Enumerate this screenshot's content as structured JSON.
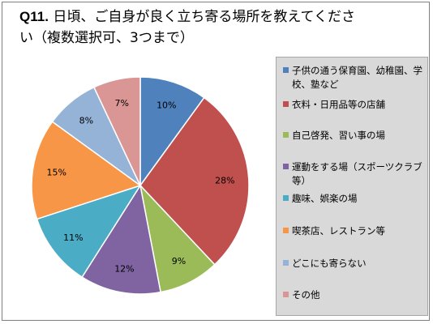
{
  "title": {
    "qnum": "Q11.",
    "text_line1": "日頃、ご自身が良く立ち寄る場所を教えてくださ",
    "text_line2": "い（複数選択可、3つまで）"
  },
  "chart_data": {
    "type": "pie",
    "start_angle_deg": 0,
    "direction": "clockwise",
    "legend_position": "right",
    "slices": [
      {
        "label": "子供の通う保育園、幼稚園、学校、塾など",
        "value": 10,
        "display": "10%",
        "color": "#4f81bd"
      },
      {
        "label": "衣料・日用品等の店舗",
        "value": 28,
        "display": "28%",
        "color": "#c0504d"
      },
      {
        "label": "自己啓発、習い事の場",
        "value": 9,
        "display": "9%",
        "color": "#9bbb59"
      },
      {
        "label": "運動をする場（スポーツクラブ等）",
        "value": 12,
        "display": "12%",
        "color": "#8064a2"
      },
      {
        "label": "趣味、娯楽の場",
        "value": 11,
        "display": "11%",
        "color": "#4bacc6"
      },
      {
        "label": "喫茶店、レストラン等",
        "value": 15,
        "display": "15%",
        "color": "#f79646"
      },
      {
        "label": "どこにも寄らない",
        "value": 8,
        "display": "8%",
        "color": "#95b3d7"
      },
      {
        "label": "その他",
        "value": 7,
        "display": "7%",
        "color": "#d99694"
      }
    ]
  }
}
